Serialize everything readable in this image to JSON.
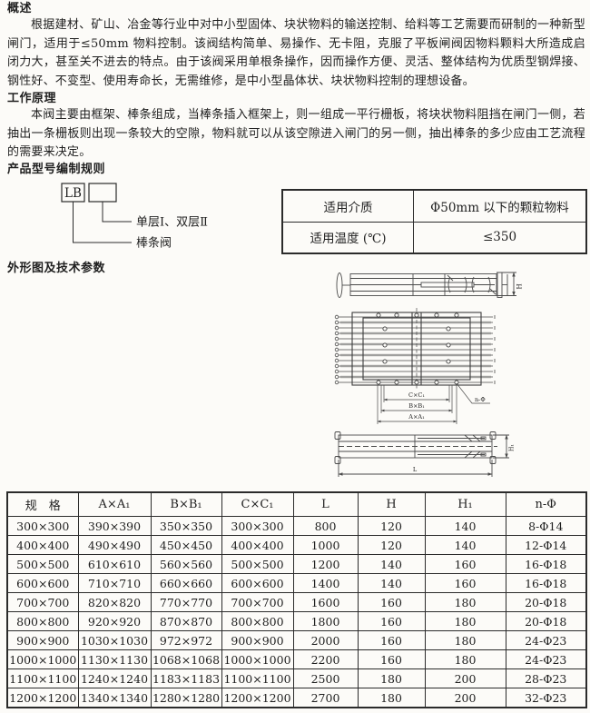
{
  "sections": {
    "overview": {
      "heading": "概述",
      "body": "根据建材、矿山、冶金等行业中对中小型固体、块状物料的输送控制、给料等工艺需要而研制的一种新型闸门，适用于≤50mm 物料控制。该阀结构简单、易操作、无卡阻，克服了平板闸阀因物料颗料大所造成启闭力大，甚至关不进去的特点。由于该阀采用单根条操作，因而操作方便、灵活、整体结构为优质型钢焊接、钢性好、不变型、使用寿命长，无需维修，是中小型晶体状、块状物料控制的理想设备。"
    },
    "principle": {
      "heading": "工作原理",
      "body": "本阀主要由框架、棒条组成，当棒条插入框架上，则一组成一平行栅板，将块状物料阻挡在闸门一侧，若抽出一条栅板则出现一条较大的空隙，物料就可以从该空隙进入闸门的另一侧，抽出棒条的多少应由工艺流程的需要来决定。"
    },
    "model_rule": {
      "heading": "产品型号编制规则",
      "code": "LB",
      "legend_layer": "单层Ⅰ、双层Ⅱ",
      "legend_valve": "棒条阀"
    },
    "outline": {
      "heading": "外形图及技术参数"
    }
  },
  "spec_table": {
    "rows": [
      [
        "适用介质",
        "Φ50mm 以下的颗粒物料"
      ],
      [
        "适用温度 (℃)",
        "≤350"
      ]
    ]
  },
  "drawing": {
    "labels": {
      "h": "H",
      "cxc1": "C×C₁",
      "bxb1": "B×B₁",
      "axa1": "A×A₁",
      "n_phi": "n-Φ",
      "l": "L",
      "h1": "H₁"
    }
  },
  "params_table": {
    "headers": [
      "规　格",
      "A×A₁",
      "B×B₁",
      "C×C₁",
      "L",
      "H",
      "H₁",
      "n-Φ"
    ],
    "rows": [
      [
        "300×300",
        "390×390",
        "350×350",
        "300×300",
        "800",
        "120",
        "140",
        "8-Φ14"
      ],
      [
        "400×400",
        "490×490",
        "450×450",
        "400×400",
        "1000",
        "120",
        "140",
        "12-Φ14"
      ],
      [
        "500×500",
        "610×610",
        "560×560",
        "500×500",
        "1200",
        "140",
        "160",
        "16-Φ18"
      ],
      [
        "600×600",
        "710×710",
        "660×660",
        "600×600",
        "1400",
        "140",
        "160",
        "16-Φ18"
      ],
      [
        "700×700",
        "820×820",
        "770×770",
        "700×700",
        "1600",
        "160",
        "180",
        "20-Φ18"
      ],
      [
        "800×800",
        "920×920",
        "870×870",
        "800×800",
        "1800",
        "160",
        "180",
        "20-Φ18"
      ],
      [
        "900×900",
        "1030×1030",
        "972×972",
        "900×900",
        "2000",
        "160",
        "180",
        "24-Φ23"
      ],
      [
        "1000×1000",
        "1130×1130",
        "1068×1068",
        "1000×1000",
        "2200",
        "160",
        "180",
        "24-Φ23"
      ],
      [
        "1100×1100",
        "1240×1240",
        "1183×1183",
        "1100×1100",
        "2500",
        "180",
        "200",
        "28-Φ23"
      ],
      [
        "1200×1200",
        "1340×1340",
        "1280×1280",
        "1200×1200",
        "2700",
        "180",
        "200",
        "32-Φ23"
      ]
    ]
  },
  "colors": {
    "paper": "#fcfbf8",
    "ink": "#1f1f1f",
    "rule": "#2b2b2b"
  }
}
